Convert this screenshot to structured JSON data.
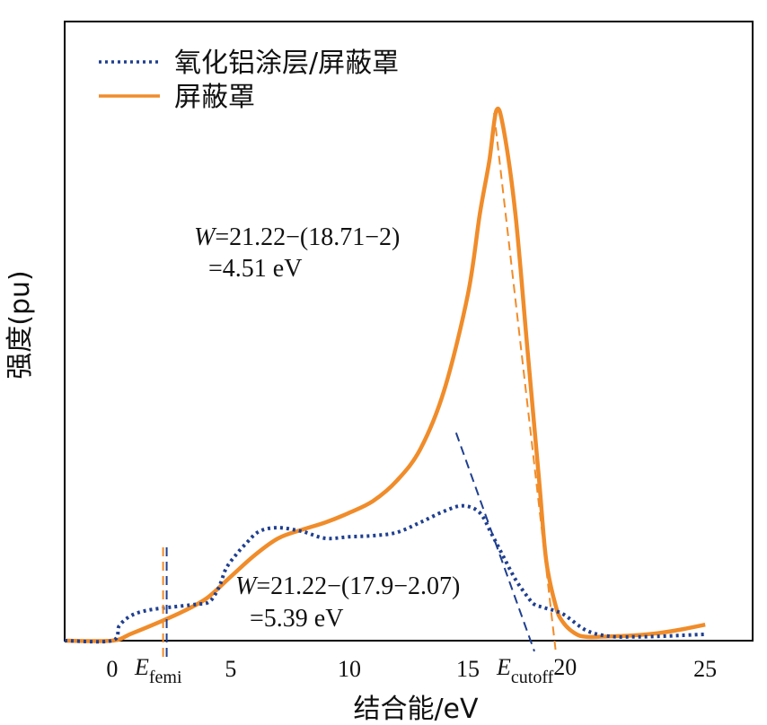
{
  "chart_data": {
    "type": "line",
    "xlabel": "结合能/eV",
    "ylabel": "强度(pu)",
    "xlim": [
      -2,
      27
    ],
    "ylim": [
      0,
      1
    ],
    "x_ticks": [
      0,
      5,
      10,
      15,
      20,
      25
    ],
    "x_tick_labels": [
      "0",
      "5",
      "10",
      "15",
      "",
      "25"
    ],
    "legend_position": "top-left",
    "grid": false,
    "colors": {
      "coated": "#1f3f8f",
      "shield": "#f08c2a"
    },
    "series": [
      {
        "name": "氧化铝涂层/屏蔽罩",
        "style": "dotted",
        "x": [
          -2,
          0,
          0.3,
          0.8,
          1.5,
          2.5,
          3.5,
          4.1,
          4.5,
          4.8,
          5.2,
          5.6,
          6.2,
          7,
          8,
          9,
          10,
          11,
          12,
          13,
          14,
          14.8,
          15.5,
          16,
          16.5,
          17,
          17.5,
          17.8,
          18.2,
          19,
          20,
          21,
          22,
          23,
          24,
          25
        ],
        "y": [
          0,
          0,
          0.028,
          0.047,
          0.057,
          0.063,
          0.068,
          0.073,
          0.1,
          0.135,
          0.16,
          0.18,
          0.205,
          0.212,
          0.205,
          0.192,
          0.195,
          0.197,
          0.203,
          0.222,
          0.243,
          0.253,
          0.24,
          0.2,
          0.157,
          0.115,
          0.083,
          0.068,
          0.062,
          0.05,
          0.019,
          0.008,
          0.007,
          0.008,
          0.01,
          0.012
        ]
      },
      {
        "name": "屏蔽罩",
        "style": "solid",
        "x": [
          -2,
          0,
          0.8,
          2,
          3,
          4,
          5,
          6,
          7,
          8,
          9,
          10,
          11,
          12,
          13,
          14,
          15,
          15.5,
          15.9,
          16.2,
          16.5,
          17,
          17.5,
          18,
          18.3,
          18.7,
          19,
          19.5,
          20,
          21,
          22,
          23,
          24,
          25
        ],
        "y": [
          0,
          0,
          0.013,
          0.035,
          0.055,
          0.08,
          0.12,
          0.16,
          0.192,
          0.208,
          0.222,
          0.24,
          0.262,
          0.3,
          0.36,
          0.47,
          0.65,
          0.8,
          0.9,
          0.995,
          0.96,
          0.8,
          0.55,
          0.3,
          0.15,
          0.065,
          0.035,
          0.014,
          0.007,
          0.008,
          0.01,
          0.014,
          0.021,
          0.03
        ]
      }
    ],
    "guide_lines": [
      {
        "color": "#1f3f8f",
        "x1": 14.5,
        "y1": 0.39,
        "x2": 17.8,
        "y2": -0.02
      },
      {
        "color": "#f08c2a",
        "x1": 16.1,
        "y1": 0.99,
        "x2": 18.7,
        "y2": -0.02
      },
      {
        "color": "#1f3f8f",
        "x1": 2.3,
        "y1": 0.175,
        "x2": 2.3,
        "y2": -0.04
      },
      {
        "color": "#f08c2a",
        "x1": 2.15,
        "y1": 0.175,
        "x2": 2.15,
        "y2": -0.04
      }
    ],
    "annotations": [
      {
        "lines": [
          [
            {
              "t": "W",
              "italic": true
            },
            {
              "t": "=21.22−(18.71−2)",
              "italic": false
            }
          ],
          [
            {
              "t": " =4.51 eV",
              "italic": false
            }
          ]
        ]
      },
      {
        "lines": [
          [
            {
              "t": "W",
              "italic": true
            },
            {
              "t": "=21.22−(17.9−2.07)",
              "italic": false
            }
          ],
          [
            {
              "t": " =5.39 eV",
              "italic": false
            }
          ]
        ]
      }
    ],
    "markers": [
      {
        "main": "E",
        "sub": "femi"
      },
      {
        "main": "E",
        "sub": "cutoff",
        "suffix": "20"
      }
    ]
  }
}
